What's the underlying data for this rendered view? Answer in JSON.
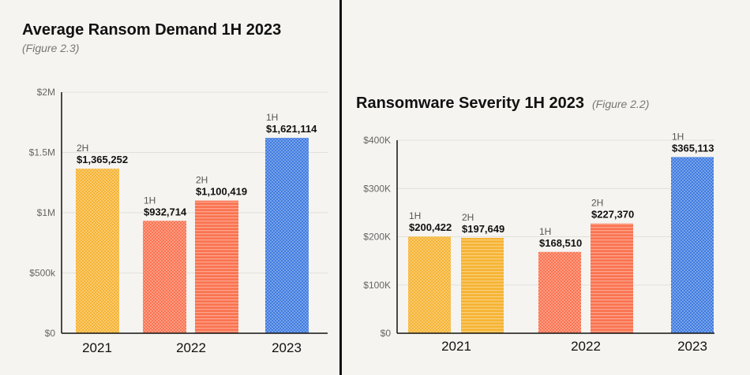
{
  "chart_data": [
    {
      "type": "bar",
      "title": "Average Ransom Demand 1H 2023",
      "subtitle": "(Figure 2.3)",
      "ylim": [
        0,
        2000000
      ],
      "yticks": [
        {
          "value": 0,
          "label": "$0"
        },
        {
          "value": 500000,
          "label": "$500k"
        },
        {
          "value": 1000000,
          "label": "$1M"
        },
        {
          "value": 1500000,
          "label": "$1.5M"
        },
        {
          "value": 2000000,
          "label": "$2M"
        }
      ],
      "grid": true,
      "groups": [
        {
          "label": "2021",
          "bars": [
            {
              "half": "2H",
              "value": 1365252,
              "value_label": "$1,365,252",
              "color": "#f6b332",
              "pattern": "checker"
            }
          ]
        },
        {
          "label": "2022",
          "bars": [
            {
              "half": "1H",
              "value": 932714,
              "value_label": "$932,714",
              "color": "#fa7350",
              "pattern": "checker"
            },
            {
              "half": "2H",
              "value": 1100419,
              "value_label": "$1,100,419",
              "color": "#fa7350",
              "pattern": "stripes"
            }
          ]
        },
        {
          "label": "2023",
          "bars": [
            {
              "half": "1H",
              "value": 1621114,
              "value_label": "$1,621,114",
              "color": "#3f7be0",
              "pattern": "checker"
            }
          ]
        }
      ]
    },
    {
      "type": "bar",
      "title": "Ransomware Severity 1H 2023",
      "subtitle": "(Figure 2.2)",
      "ylim": [
        0,
        400000
      ],
      "yticks": [
        {
          "value": 0,
          "label": "$0"
        },
        {
          "value": 100000,
          "label": "$100K"
        },
        {
          "value": 200000,
          "label": "$200K"
        },
        {
          "value": 300000,
          "label": "$300K"
        },
        {
          "value": 400000,
          "label": "$400K"
        }
      ],
      "grid": true,
      "groups": [
        {
          "label": "2021",
          "bars": [
            {
              "half": "1H",
              "value": 200422,
              "value_label": "$200,422",
              "color": "#f6b332",
              "pattern": "checker"
            },
            {
              "half": "2H",
              "value": 197649,
              "value_label": "$197,649",
              "color": "#f6b332",
              "pattern": "stripes"
            }
          ]
        },
        {
          "label": "2022",
          "bars": [
            {
              "half": "1H",
              "value": 168510,
              "value_label": "$168,510",
              "color": "#fa7350",
              "pattern": "checker"
            },
            {
              "half": "2H",
              "value": 227370,
              "value_label": "$227,370",
              "color": "#fa7350",
              "pattern": "stripes"
            }
          ]
        },
        {
          "label": "2023",
          "bars": [
            {
              "half": "1H",
              "value": 365113,
              "value_label": "$365,113",
              "color": "#3f7be0",
              "pattern": "checker"
            }
          ]
        }
      ]
    }
  ]
}
